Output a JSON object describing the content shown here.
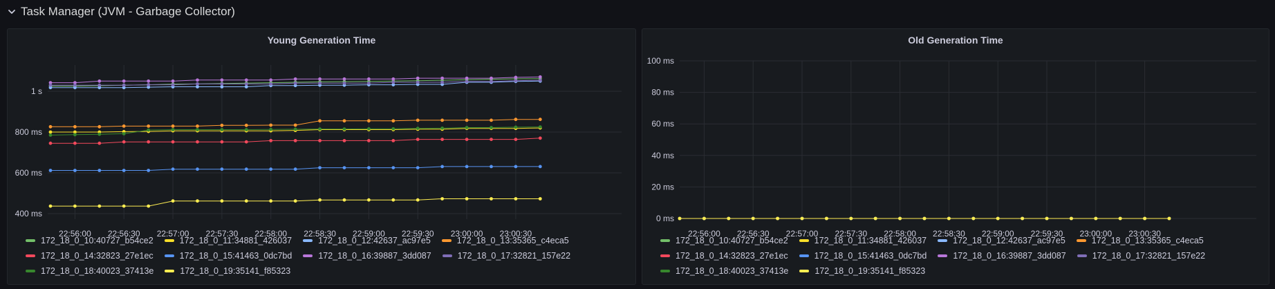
{
  "row": {
    "title": "Task Manager (JVM - Garbage Collector)"
  },
  "panels": [
    {
      "id": "young",
      "title": "Young Generation Time",
      "chart_data": {
        "type": "line",
        "title": "Young Generation Time",
        "x": [
          "22:55:45",
          "22:56:00",
          "22:56:15",
          "22:56:30",
          "22:56:45",
          "22:57:00",
          "22:57:15",
          "22:57:30",
          "22:57:45",
          "22:58:00",
          "22:58:15",
          "22:58:30",
          "22:58:45",
          "22:59:00",
          "22:59:15",
          "22:59:30",
          "22:59:45",
          "23:00:00",
          "23:00:15",
          "23:00:30",
          "23:00:45"
        ],
        "xticks": [
          "22:56:00",
          "22:56:30",
          "22:57:00",
          "22:57:30",
          "22:58:00",
          "22:58:30",
          "22:59:00",
          "22:59:30",
          "23:00:00",
          "23:00:30"
        ],
        "yticks": [
          "400 ms",
          "600 ms",
          "800 ms",
          "1 s"
        ],
        "ylim": [
          380,
          1100
        ],
        "grid": true,
        "legend": "bottom",
        "series": [
          {
            "name": "172_18_0_10:40727_b54ce2",
            "color": "#73bf69",
            "values": [
              1025,
              1025,
              1027,
              1030,
              1032,
              1035,
              1036,
              1038,
              1040,
              1042,
              1044,
              1046,
              1047,
              1048,
              1050,
              1052,
              1054,
              1057,
              1059,
              1061,
              1062
            ]
          },
          {
            "name": "172_18_0_11:34881_426037",
            "color": "#fade2a",
            "values": [
              800,
              800,
              800,
              802,
              803,
              806,
              806,
              806,
              806,
              806,
              808,
              812,
              812,
              812,
              812,
              814,
              814,
              818,
              818,
              818,
              820
            ]
          },
          {
            "name": "172_18_0_12:42637_ac97e5",
            "color": "#8ab8ff",
            "values": [
              1018,
              1018,
              1018,
              1018,
              1020,
              1022,
              1022,
              1022,
              1022,
              1028,
              1028,
              1030,
              1030,
              1032,
              1032,
              1034,
              1034,
              1044,
              1044,
              1048,
              1050
            ]
          },
          {
            "name": "172_18_0_13:35365_c4eca5",
            "color": "#ff9830",
            "values": [
              826,
              826,
              826,
              829,
              829,
              829,
              829,
              833,
              833,
              834,
              834,
              855,
              855,
              855,
              855,
              858,
              858,
              858,
              858,
              862,
              862
            ]
          },
          {
            "name": "172_18_0_14:32823_27e1ec",
            "color": "#f2495c",
            "values": [
              745,
              745,
              745,
              752,
              752,
              752,
              752,
              752,
              752,
              758,
              758,
              758,
              758,
              758,
              758,
              764,
              764,
              764,
              764,
              764,
              770
            ]
          },
          {
            "name": "172_18_0_15:41463_0dc7bd",
            "color": "#5794f2",
            "values": [
              612,
              612,
              612,
              612,
              612,
              618,
              618,
              618,
              618,
              618,
              618,
              625,
              625,
              625,
              625,
              625,
              631,
              631,
              631,
              631,
              631
            ]
          },
          {
            "name": "172_18_0_16:39887_3dd087",
            "color": "#b877d9",
            "values": [
              1042,
              1042,
              1050,
              1050,
              1050,
              1050,
              1055,
              1055,
              1055,
              1055,
              1060,
              1060,
              1060,
              1060,
              1060,
              1064,
              1064,
              1064,
              1064,
              1068,
              1070
            ]
          },
          {
            "name": "172_18_0_17:32821_157e22",
            "color": "#806eb7",
            "values": [
              1030,
              1030,
              1030,
              1030,
              1032,
              1032,
              1036,
              1036,
              1036,
              1036,
              1040,
              1040,
              1040,
              1040,
              1044,
              1044,
              1044,
              1048,
              1048,
              1052,
              1054
            ]
          },
          {
            "name": "172_18_0_18:40023_37413e",
            "color": "#37872d",
            "values": [
              785,
              787,
              789,
              792,
              810,
              812,
              812,
              812,
              812,
              813,
              814,
              815,
              815,
              816,
              816,
              818,
              819,
              822,
              822,
              824,
              825
            ]
          },
          {
            "name": "172_18_0_19:35141_f85323",
            "color": "#ffee52",
            "values": [
              437,
              437,
              437,
              437,
              437,
              462,
              462,
              462,
              462,
              462,
              462,
              467,
              467,
              467,
              467,
              467,
              473,
              473,
              473,
              473,
              473
            ]
          }
        ]
      }
    },
    {
      "id": "old",
      "title": "Old Generation Time",
      "chart_data": {
        "type": "line",
        "title": "Old Generation Time",
        "x": [
          "22:55:45",
          "22:56:00",
          "22:56:15",
          "22:56:30",
          "22:56:45",
          "22:57:00",
          "22:57:15",
          "22:57:30",
          "22:57:45",
          "22:58:00",
          "22:58:15",
          "22:58:30",
          "22:58:45",
          "22:59:00",
          "22:59:15",
          "22:59:30",
          "22:59:45",
          "23:00:00",
          "23:00:15",
          "23:00:30",
          "23:00:45"
        ],
        "xticks": [
          "22:56:00",
          "22:56:30",
          "22:57:00",
          "22:57:30",
          "22:58:00",
          "22:58:30",
          "22:59:00",
          "22:59:30",
          "23:00:00",
          "23:00:30"
        ],
        "yticks": [
          "0 ms",
          "20 ms",
          "40 ms",
          "60 ms",
          "80 ms",
          "100 ms"
        ],
        "ylim": [
          0,
          100
        ],
        "grid": true,
        "legend": "bottom",
        "series": [
          {
            "name": "172_18_0_10:40727_b54ce2",
            "color": "#73bf69",
            "values": [
              0,
              0,
              0,
              0,
              0,
              0,
              0,
              0,
              0,
              0,
              0,
              0,
              0,
              0,
              0,
              0,
              0,
              0,
              0,
              0,
              0
            ]
          },
          {
            "name": "172_18_0_11:34881_426037",
            "color": "#fade2a",
            "values": [
              0,
              0,
              0,
              0,
              0,
              0,
              0,
              0,
              0,
              0,
              0,
              0,
              0,
              0,
              0,
              0,
              0,
              0,
              0,
              0,
              0
            ]
          },
          {
            "name": "172_18_0_12:42637_ac97e5",
            "color": "#8ab8ff",
            "values": [
              0,
              0,
              0,
              0,
              0,
              0,
              0,
              0,
              0,
              0,
              0,
              0,
              0,
              0,
              0,
              0,
              0,
              0,
              0,
              0,
              0
            ]
          },
          {
            "name": "172_18_0_13:35365_c4eca5",
            "color": "#ff9830",
            "values": [
              0,
              0,
              0,
              0,
              0,
              0,
              0,
              0,
              0,
              0,
              0,
              0,
              0,
              0,
              0,
              0,
              0,
              0,
              0,
              0,
              0
            ]
          },
          {
            "name": "172_18_0_14:32823_27e1ec",
            "color": "#f2495c",
            "values": [
              0,
              0,
              0,
              0,
              0,
              0,
              0,
              0,
              0,
              0,
              0,
              0,
              0,
              0,
              0,
              0,
              0,
              0,
              0,
              0,
              0
            ]
          },
          {
            "name": "172_18_0_15:41463_0dc7bd",
            "color": "#5794f2",
            "values": [
              0,
              0,
              0,
              0,
              0,
              0,
              0,
              0,
              0,
              0,
              0,
              0,
              0,
              0,
              0,
              0,
              0,
              0,
              0,
              0,
              0
            ]
          },
          {
            "name": "172_18_0_16:39887_3dd087",
            "color": "#b877d9",
            "values": [
              0,
              0,
              0,
              0,
              0,
              0,
              0,
              0,
              0,
              0,
              0,
              0,
              0,
              0,
              0,
              0,
              0,
              0,
              0,
              0,
              0
            ]
          },
          {
            "name": "172_18_0_17:32821_157e22",
            "color": "#806eb7",
            "values": [
              0,
              0,
              0,
              0,
              0,
              0,
              0,
              0,
              0,
              0,
              0,
              0,
              0,
              0,
              0,
              0,
              0,
              0,
              0,
              0,
              0
            ]
          },
          {
            "name": "172_18_0_18:40023_37413e",
            "color": "#37872d",
            "values": [
              0,
              0,
              0,
              0,
              0,
              0,
              0,
              0,
              0,
              0,
              0,
              0,
              0,
              0,
              0,
              0,
              0,
              0,
              0,
              0,
              0
            ]
          },
          {
            "name": "172_18_0_19:35141_f85323",
            "color": "#ffee52",
            "values": [
              0,
              0,
              0,
              0,
              0,
              0,
              0,
              0,
              0,
              0,
              0,
              0,
              0,
              0,
              0,
              0,
              0,
              0,
              0,
              0,
              0
            ]
          }
        ]
      }
    }
  ]
}
